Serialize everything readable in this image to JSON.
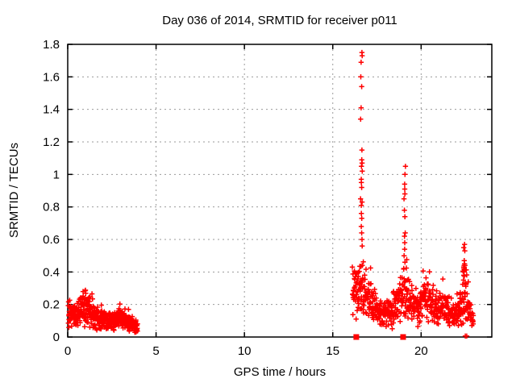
{
  "colors": {
    "background": "#ffffff",
    "frame": "#000000",
    "grid": "#9a9a9a",
    "marker": "#ff0000",
    "text": "#000000"
  },
  "chart_data": {
    "type": "scatter",
    "title": "Day 036 of 2014, SRMTID for receiver p011",
    "xlabel": "GPS time / hours",
    "ylabel": "SRMTID / TECUs",
    "xlim": [
      0,
      24
    ],
    "ylim": [
      0,
      1.8
    ],
    "xticks": [
      0,
      5,
      10,
      15,
      20
    ],
    "xtick_labels": [
      "0",
      "5",
      "10",
      "15",
      "20"
    ],
    "yticks": [
      0,
      0.2,
      0.4,
      0.6,
      0.8,
      1.0,
      1.2,
      1.4,
      1.6,
      1.8
    ],
    "ytick_labels": [
      "0",
      "0.2",
      "0.4",
      "0.6",
      "0.8",
      "1",
      "1.2",
      "1.4",
      "1.6",
      "1.8"
    ],
    "grid": "dashed gray at major ticks",
    "legend": "none",
    "marker": {
      "shape": "plus",
      "size": 7,
      "color": "#ff0000"
    },
    "series_name": "SRMTID",
    "clusters": [
      {
        "label": "morning-band",
        "x_start": 0.03,
        "x_end": 3.95,
        "count": 470,
        "keyframes": [
          [
            0.03,
            0.13,
            0.07
          ],
          [
            0.5,
            0.12,
            0.06
          ],
          [
            0.8,
            0.17,
            0.08
          ],
          [
            1.1,
            0.17,
            0.09
          ],
          [
            1.4,
            0.13,
            0.06
          ],
          [
            1.9,
            0.1,
            0.05
          ],
          [
            2.4,
            0.09,
            0.05
          ],
          [
            2.8,
            0.12,
            0.05
          ],
          [
            3.1,
            0.11,
            0.05
          ],
          [
            3.5,
            0.08,
            0.04
          ],
          [
            3.95,
            0.06,
            0.03
          ]
        ]
      },
      {
        "label": "evening-band",
        "x_start": 16.1,
        "x_end": 22.95,
        "count": 650,
        "keyframes": [
          [
            16.1,
            0.28,
            0.12
          ],
          [
            16.45,
            0.3,
            0.16
          ],
          [
            16.7,
            0.33,
            0.18
          ],
          [
            17.0,
            0.24,
            0.11
          ],
          [
            17.4,
            0.17,
            0.08
          ],
          [
            17.9,
            0.14,
            0.06
          ],
          [
            18.4,
            0.15,
            0.07
          ],
          [
            18.7,
            0.25,
            0.13
          ],
          [
            19.1,
            0.27,
            0.13
          ],
          [
            19.5,
            0.2,
            0.09
          ],
          [
            19.9,
            0.17,
            0.08
          ],
          [
            20.15,
            0.27,
            0.12
          ],
          [
            20.5,
            0.2,
            0.09
          ],
          [
            20.9,
            0.17,
            0.08
          ],
          [
            21.3,
            0.19,
            0.08
          ],
          [
            21.7,
            0.15,
            0.07
          ],
          [
            22.1,
            0.14,
            0.06
          ],
          [
            22.45,
            0.27,
            0.13
          ],
          [
            22.7,
            0.15,
            0.08
          ],
          [
            22.95,
            0.1,
            0.05
          ]
        ]
      }
    ],
    "spikes": [
      {
        "x": 16.62,
        "jitter": 0.05,
        "values": [
          1.75,
          1.73,
          1.69,
          1.6,
          1.54,
          1.41,
          1.34,
          1.15,
          1.09,
          1.07,
          1.05,
          1.02,
          0.97,
          0.95,
          0.92,
          0.85,
          0.83,
          0.81,
          0.76,
          0.73,
          0.68,
          0.64,
          0.6,
          0.56
        ]
      },
      {
        "x": 19.08,
        "jitter": 0.05,
        "values": [
          1.05,
          1.0,
          0.94,
          0.91,
          0.88,
          0.85,
          0.78,
          0.74,
          0.64,
          0.62,
          0.58,
          0.54,
          0.5,
          0.46
        ]
      },
      {
        "x": 22.45,
        "jitter": 0.06,
        "values": [
          0.57,
          0.55,
          0.53,
          0.47,
          0.45,
          0.44,
          0.44,
          0.43,
          0.43,
          0.42,
          0.41,
          0.4,
          0.38,
          0.35,
          0.33
        ]
      }
    ],
    "zero_squares_x": [
      16.33,
      18.98
    ],
    "zero_plus_x": [
      22.5,
      22.58
    ]
  }
}
